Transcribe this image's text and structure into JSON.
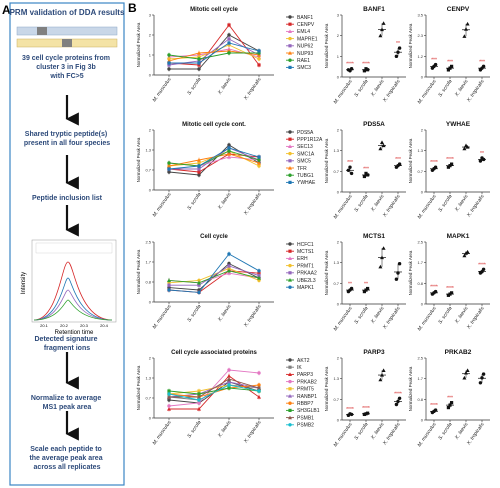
{
  "panels": {
    "a": {
      "letter": "A",
      "title": "PRM validation of DDA results",
      "step1": "39 cell cycle proteins from cluster 3 in Fig 3b with FC>5",
      "step2": "Shared tryptic peptide(s) present in all four species",
      "step3": "Peptide inclusion list",
      "step4": "Detected signature fragment ions",
      "step5": "Normalize to average MS1 peak area",
      "step6": "Scale each peptide to the average peak area across all replicates",
      "chrom_ylabel": "Intensity",
      "chrom_xlabel": "Retention time",
      "chrom_xticks": [
        "20.1",
        "20.2",
        "20.3",
        "20.4"
      ],
      "colors": {
        "frame": "#3b86c4",
        "arrow": "#111111",
        "bar_blue": "#c9d7e8",
        "bar_yellow": "#f4e3a6",
        "bar_gray": "#808080"
      }
    },
    "b": {
      "letter": "B"
    }
  },
  "chart_data": [
    {
      "type": "line",
      "title": "Mitotic cell cycle",
      "ylabel": "Normalized Peak Area",
      "categories": [
        "M. musculus",
        "S. scrofa",
        "X. laevis",
        "X. tropicalis"
      ],
      "ylim": [
        0,
        3
      ],
      "series": [
        {
          "name": "BANF1",
          "color": "#444444",
          "values": [
            0.3,
            0.3,
            2.0,
            1.2
          ]
        },
        {
          "name": "CENPV",
          "color": "#d62728",
          "values": [
            0.6,
            0.5,
            2.5,
            0.5
          ]
        },
        {
          "name": "EML4",
          "color": "#e377c2",
          "values": [
            0.9,
            1.0,
            1.3,
            0.9
          ]
        },
        {
          "name": "MAPRE1",
          "color": "#f2c12e",
          "values": [
            0.8,
            0.9,
            1.5,
            0.8
          ]
        },
        {
          "name": "NUP62",
          "color": "#9467bd",
          "values": [
            0.5,
            0.7,
            1.8,
            1.0
          ]
        },
        {
          "name": "NUP93",
          "color": "#ff7f0e",
          "values": [
            0.7,
            1.1,
            1.2,
            1.0
          ]
        },
        {
          "name": "RAE1",
          "color": "#2ca02c",
          "values": [
            1.0,
            0.8,
            1.1,
            1.1
          ]
        },
        {
          "name": "SMC3",
          "color": "#1f77b4",
          "values": [
            0.6,
            0.6,
            1.6,
            1.2
          ]
        }
      ]
    },
    {
      "type": "line",
      "title": "Mitotic cell cycle cont.",
      "ylabel": "Normalized Peak Area",
      "categories": [
        "M. musculus",
        "S. scrofa",
        "X. laevis",
        "X. tropicalis"
      ],
      "ylim": [
        0,
        2
      ],
      "series": [
        {
          "name": "PDS5A",
          "color": "#444444",
          "values": [
            0.6,
            0.5,
            1.5,
            0.9
          ]
        },
        {
          "name": "PPP1R12A",
          "color": "#d62728",
          "values": [
            0.7,
            0.6,
            1.2,
            1.1
          ]
        },
        {
          "name": "SEC13",
          "color": "#e377c2",
          "values": [
            0.9,
            0.8,
            1.1,
            1.0
          ]
        },
        {
          "name": "SMC1A",
          "color": "#f2c12e",
          "values": [
            0.8,
            0.9,
            1.3,
            0.8
          ]
        },
        {
          "name": "SMC5",
          "color": "#9467bd",
          "values": [
            0.7,
            0.7,
            1.4,
            1.0
          ]
        },
        {
          "name": "TFR",
          "color": "#ff7f0e",
          "values": [
            0.8,
            1.0,
            1.2,
            0.9
          ]
        },
        {
          "name": "TUBG1",
          "color": "#2ca02c",
          "values": [
            0.9,
            0.8,
            1.3,
            1.0
          ]
        },
        {
          "name": "YWHAE",
          "color": "#1f77b4",
          "values": [
            0.7,
            0.8,
            1.4,
            1.1
          ]
        }
      ]
    },
    {
      "type": "line",
      "title": "Cell cycle",
      "ylabel": "Normalized Peak Area",
      "categories": [
        "M. musculus",
        "S. scrofa",
        "X. laevis",
        "X. tropicalis"
      ],
      "ylim": [
        0,
        2.5
      ],
      "series": [
        {
          "name": "HCFC1",
          "color": "#444444",
          "values": [
            0.6,
            0.5,
            1.6,
            1.0
          ]
        },
        {
          "name": "MCTS1",
          "color": "#d62728",
          "values": [
            0.5,
            0.4,
            1.3,
            1.2
          ]
        },
        {
          "name": "ERH",
          "color": "#e377c2",
          "values": [
            0.9,
            0.8,
            1.2,
            1.0
          ]
        },
        {
          "name": "PRMT1",
          "color": "#f2c12e",
          "values": [
            0.8,
            0.9,
            1.4,
            0.9
          ]
        },
        {
          "name": "PRKAA2",
          "color": "#9467bd",
          "values": [
            0.7,
            0.7,
            1.5,
            1.1
          ]
        },
        {
          "name": "UBE2L3",
          "color": "#2ca02c",
          "values": [
            0.9,
            0.8,
            1.3,
            1.0
          ]
        },
        {
          "name": "MAPK1",
          "color": "#1f77b4",
          "values": [
            0.5,
            0.4,
            2.0,
            1.3
          ]
        }
      ]
    },
    {
      "type": "line",
      "title": "Cell cycle associated proteins",
      "ylabel": "Normalized Peak Area",
      "categories": [
        "M. musculus",
        "S. scrofa",
        "X. laevis",
        "X. tropicalis"
      ],
      "ylim": [
        0,
        2
      ],
      "series": [
        {
          "name": "AKT2",
          "color": "#444444",
          "values": [
            0.6,
            0.5,
            1.2,
            0.9
          ]
        },
        {
          "name": "IK",
          "color": "#7f7f7f",
          "values": [
            0.7,
            0.6,
            1.1,
            1.0
          ]
        },
        {
          "name": "PARP3",
          "color": "#d62728",
          "values": [
            0.3,
            0.3,
            1.4,
            0.7
          ]
        },
        {
          "name": "PRKAB2",
          "color": "#e377c2",
          "values": [
            0.4,
            0.5,
            1.6,
            1.5
          ]
        },
        {
          "name": "PRMT5",
          "color": "#f2c12e",
          "values": [
            0.8,
            0.9,
            1.1,
            0.9
          ]
        },
        {
          "name": "RANBP1",
          "color": "#9467bd",
          "values": [
            0.7,
            0.8,
            1.2,
            1.0
          ]
        },
        {
          "name": "RBBP7",
          "color": "#ff7f0e",
          "values": [
            0.8,
            0.7,
            1.0,
            1.1
          ]
        },
        {
          "name": "SH3GLB1",
          "color": "#2ca02c",
          "values": [
            0.9,
            0.8,
            1.0,
            0.9
          ]
        },
        {
          "name": "PSMB1",
          "color": "#8c564b",
          "values": [
            0.7,
            0.7,
            1.3,
            1.0
          ]
        },
        {
          "name": "PSMB2",
          "color": "#17becf",
          "values": [
            0.8,
            0.6,
            1.1,
            0.9
          ]
        }
      ]
    },
    {
      "type": "scatter",
      "title": "BANF1",
      "ylabel": "Normalized Peak Area",
      "categories": [
        "M. musculus",
        "S. scrofa",
        "X. laevis",
        "X. tropicalis"
      ],
      "ylim": [
        0,
        3
      ],
      "points": [
        [
          0.35,
          0.3,
          0.4
        ],
        [
          0.3,
          0.4,
          0.35
        ],
        [
          2.0,
          2.3,
          2.6
        ],
        [
          1.0,
          1.2,
          1.4
        ]
      ],
      "significance": [
        "****",
        "****",
        "",
        "**"
      ]
    },
    {
      "type": "scatter",
      "title": "CENPV",
      "ylabel": "Normalized Peak Area",
      "categories": [
        "M. musculus",
        "S. scrofa",
        "X. laevis",
        "X. tropicalis"
      ],
      "ylim": [
        0,
        3.5
      ],
      "points": [
        [
          0.5,
          0.6,
          0.7
        ],
        [
          0.4,
          0.5,
          0.6
        ],
        [
          2.3,
          2.7,
          3.0
        ],
        [
          0.4,
          0.5,
          0.6
        ]
      ],
      "significance": [
        "***",
        "***",
        "",
        "***"
      ]
    },
    {
      "type": "scatter",
      "title": "PDS5A",
      "ylabel": "Normalized Peak Area",
      "categories": [
        "M. musculus",
        "S. scrofa",
        "X. laevis",
        "X. tropicalis"
      ],
      "ylim": [
        0,
        2
      ],
      "points": [
        [
          0.7,
          0.8,
          0.6
        ],
        [
          0.5,
          0.6,
          0.55
        ],
        [
          1.4,
          1.6,
          1.5
        ],
        [
          0.8,
          0.85,
          0.9
        ]
      ],
      "significance": [
        "***",
        "***",
        "",
        "***"
      ]
    },
    {
      "type": "scatter",
      "title": "YWHAE",
      "ylabel": "Normalized Peak Area",
      "categories": [
        "M. musculus",
        "S. scrofa",
        "X. laevis",
        "X. tropicalis"
      ],
      "ylim": [
        0,
        2
      ],
      "points": [
        [
          0.7,
          0.75,
          0.8
        ],
        [
          0.8,
          0.85,
          0.9
        ],
        [
          1.4,
          1.5,
          1.45
        ],
        [
          1.0,
          1.1,
          1.05
        ]
      ],
      "significance": [
        "****",
        "****",
        "",
        "**"
      ]
    },
    {
      "type": "scatter",
      "title": "MCTS1",
      "ylabel": "Normalized Peak Area",
      "categories": [
        "M. musculus",
        "S. scrofa",
        "X. laevis",
        "X. tropicalis"
      ],
      "ylim": [
        0,
        2
      ],
      "points": [
        [
          0.4,
          0.45,
          0.5
        ],
        [
          0.4,
          0.45,
          0.5
        ],
        [
          1.2,
          1.5,
          1.8
        ],
        [
          0.8,
          1.0,
          1.3
        ]
      ],
      "significance": [
        "**",
        "**",
        "",
        ""
      ]
    },
    {
      "type": "scatter",
      "title": "MAPK1",
      "ylabel": "Normalized Peak Area",
      "categories": [
        "M. musculus",
        "S. scrofa",
        "X. laevis",
        "X. tropicalis"
      ],
      "ylim": [
        0,
        2.5
      ],
      "points": [
        [
          0.4,
          0.45,
          0.5
        ],
        [
          0.35,
          0.4,
          0.45
        ],
        [
          1.95,
          2.05,
          2.1
        ],
        [
          1.25,
          1.3,
          1.4
        ]
      ],
      "significance": [
        "****",
        "****",
        "",
        "****"
      ]
    },
    {
      "type": "scatter",
      "title": "PARP3",
      "ylabel": "Normalized Peak Area",
      "categories": [
        "M. musculus",
        "S. scrofa",
        "X. laevis",
        "X. tropicalis"
      ],
      "ylim": [
        0,
        2
      ],
      "points": [
        [
          0.15,
          0.2,
          0.18
        ],
        [
          0.18,
          0.2,
          0.22
        ],
        [
          1.3,
          1.45,
          1.6
        ],
        [
          0.5,
          0.6,
          0.7
        ]
      ],
      "significance": [
        "****",
        "****",
        "",
        "****"
      ]
    },
    {
      "type": "scatter",
      "title": "PRKAB2",
      "ylabel": "Normalized Peak Area",
      "categories": [
        "M. musculus",
        "S. scrofa",
        "X. laevis",
        "X. tropicalis"
      ],
      "ylim": [
        0,
        2.5
      ],
      "points": [
        [
          0.3,
          0.35,
          0.4
        ],
        [
          0.5,
          0.6,
          0.7
        ],
        [
          1.7,
          1.9,
          2.0
        ],
        [
          1.5,
          1.7,
          1.85
        ]
      ],
      "significance": [
        "****",
        "***",
        "",
        ""
      ]
    }
  ]
}
